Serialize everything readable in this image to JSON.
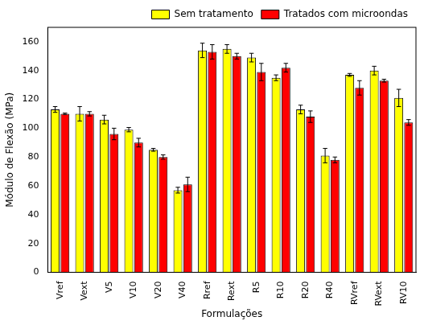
{
  "chart_data": {
    "type": "bar",
    "y_label": "Módulo de Flexão (MPa)",
    "x_label": "Formulações",
    "categories": [
      "Vref",
      "Vext",
      "V5",
      "V10",
      "V20",
      "V40",
      "Rref",
      "Rext",
      "R5",
      "R10",
      "R20",
      "R40",
      "RVref",
      "RVext",
      "RV10"
    ],
    "series": [
      {
        "name": "Sem tratamento",
        "color": "#ffff00",
        "values": [
          113,
          110,
          106,
          99,
          85,
          57,
          154,
          155,
          149,
          135,
          113,
          81,
          137,
          140,
          121
        ],
        "errors": [
          2,
          5,
          3,
          1.5,
          1,
          2,
          5,
          3,
          3,
          2,
          3,
          5,
          1,
          3,
          6
        ]
      },
      {
        "name": "Tratados com microondas",
        "color": "#ff0000",
        "values": [
          110,
          110,
          96,
          90,
          80,
          61,
          153,
          150,
          139,
          142,
          108,
          78,
          128,
          133,
          104
        ],
        "errors": [
          0.5,
          1.5,
          4,
          3,
          1.5,
          5,
          5,
          2,
          6,
          3,
          4,
          2,
          5,
          1,
          2
        ]
      }
    ],
    "ylim": [
      0,
      170
    ],
    "yticks": [
      0,
      20,
      40,
      60,
      80,
      100,
      120,
      140,
      160
    ],
    "grid": false,
    "legend": "top-right"
  }
}
